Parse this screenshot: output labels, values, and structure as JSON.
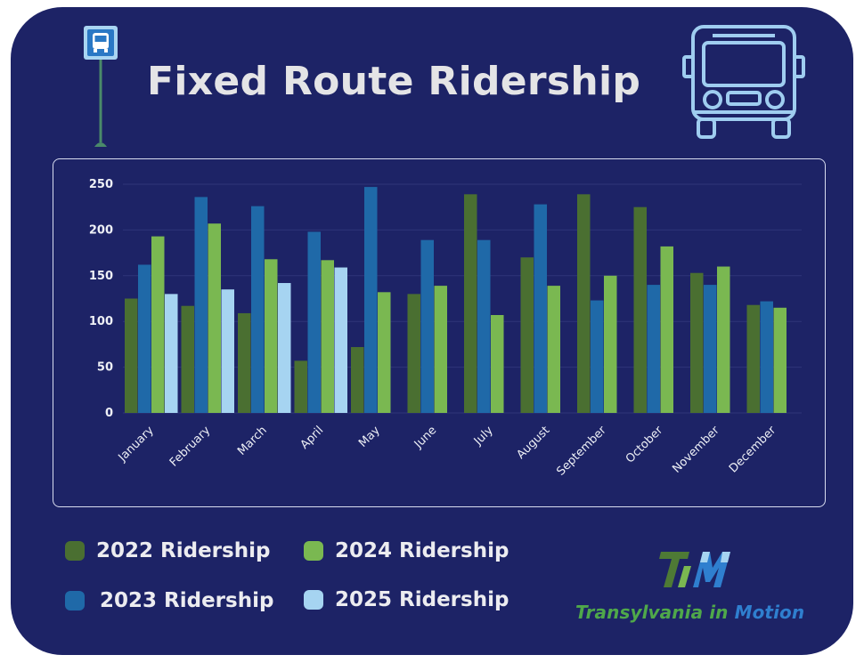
{
  "title": "Fixed Route Ridership",
  "icons": {
    "stop": "bus-stop-sign-icon",
    "bus": "bus-front-icon"
  },
  "colors": {
    "background": "#1d2366",
    "title": "#e4e4e6",
    "series_2022": "#4a6f31",
    "series_2023": "#1f69a8",
    "series_2024": "#7ab851",
    "series_2025": "#a6d4f1"
  },
  "legend": [
    {
      "label": "2022 Ridership",
      "color": "#4a6f31"
    },
    {
      "label": "2024 Ridership",
      "color": "#7ab851"
    },
    {
      "label": "2023 Ridership",
      "color": "#1f69a8"
    },
    {
      "label": "2025 Ridership",
      "color": "#a6d4f1"
    }
  ],
  "logo": {
    "mark": "TiM",
    "name_part1": "Transylvania in ",
    "name_part2": "Motion"
  },
  "chart_data": {
    "type": "bar",
    "categories": [
      "January",
      "February",
      "March",
      "April",
      "May",
      "June",
      "July",
      "August",
      "September",
      "October",
      "November",
      "December"
    ],
    "series": [
      {
        "name": "2022 Ridership",
        "values": [
          125,
          117,
          109,
          57,
          72,
          130,
          239,
          170,
          239,
          225,
          153,
          118
        ]
      },
      {
        "name": "2023 Ridership",
        "values": [
          162,
          236,
          226,
          198,
          247,
          189,
          189,
          228,
          123,
          140,
          140,
          122
        ]
      },
      {
        "name": "2024 Ridership",
        "values": [
          193,
          207,
          168,
          167,
          132,
          139,
          107,
          139,
          150,
          182,
          160,
          115
        ]
      },
      {
        "name": "2025 Ridership",
        "values": [
          130,
          135,
          142,
          159,
          null,
          null,
          null,
          null,
          null,
          null,
          null,
          null
        ]
      }
    ],
    "yticks": [
      0,
      50,
      100,
      150,
      200,
      250
    ],
    "ylim": [
      0,
      250
    ],
    "grid": true,
    "legend": "bottom"
  }
}
